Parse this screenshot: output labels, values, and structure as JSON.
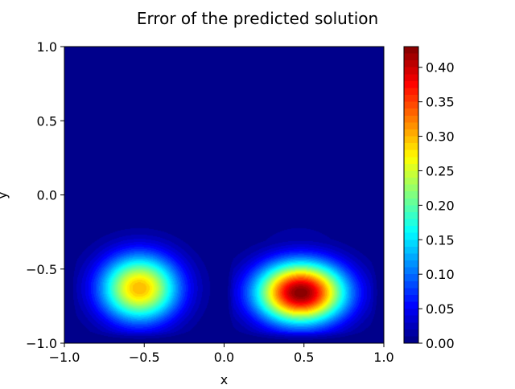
{
  "chart_data": {
    "type": "heatmap",
    "title": "Error of the predicted solution",
    "xlabel": "x",
    "ylabel": "y",
    "xlim": [
      -1.0,
      1.0
    ],
    "ylim": [
      -1.0,
      1.0
    ],
    "x_ticks": [
      -1.0,
      -0.5,
      0.0,
      0.5,
      1.0
    ],
    "x_tick_labels": [
      "−1.0",
      "−0.5",
      "0.0",
      "0.5",
      "1.0"
    ],
    "y_ticks": [
      -1.0,
      -0.5,
      0.0,
      0.5,
      1.0
    ],
    "y_tick_labels": [
      "−1.0",
      "−0.5",
      "0.0",
      "0.5",
      "1.0"
    ],
    "colormap": "jet",
    "colorbar": {
      "min": 0.0,
      "max": 0.43,
      "ticks": [
        0.0,
        0.05,
        0.1,
        0.15,
        0.2,
        0.25,
        0.3,
        0.35,
        0.4
      ],
      "tick_labels": [
        "0.00",
        "0.05",
        "0.10",
        "0.15",
        "0.20",
        "0.25",
        "0.30",
        "0.35",
        "0.40"
      ],
      "levels": 43
    },
    "peaks": [
      {
        "x": -0.53,
        "y": -0.63,
        "value": 0.3
      },
      {
        "x": 0.48,
        "y": -0.66,
        "value": 0.43
      }
    ],
    "grid": false
  }
}
